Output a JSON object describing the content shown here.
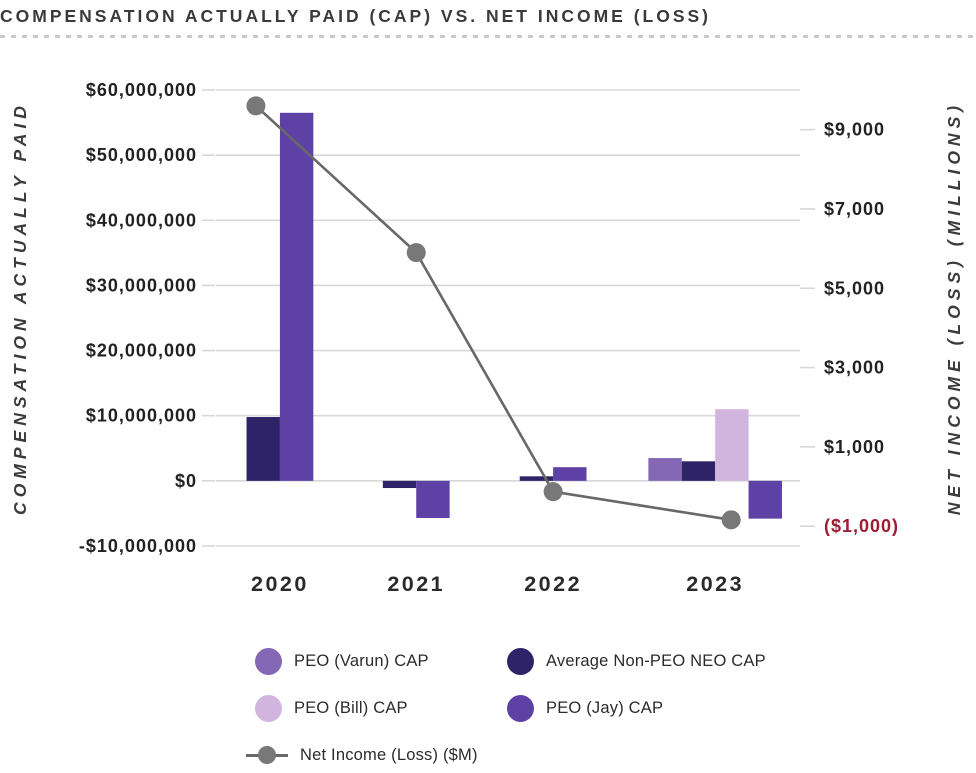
{
  "header": {
    "title": "COMPENSATION ACTUALLY PAID (CAP) VS. NET INCOME (LOSS)"
  },
  "colors": {
    "varun": "#8468b5",
    "avg_neo": "#2e2367",
    "bill": "#d2b5df",
    "jay": "#5e41a5",
    "line": "#686868",
    "marker": "#787878",
    "grid": "#d8d8d8",
    "title_text": "#3a3a3c",
    "tick_text": "#232021",
    "negative_tick": "#9e1b32",
    "legend_text": "#2b2b2b",
    "separator": "#c9c9c9"
  },
  "chart_data": {
    "type": "bar",
    "subtype": "combo-bar-line-dual-axis",
    "title": "COMPENSATION ACTUALLY PAID (CAP) VS. NET INCOME (LOSS)",
    "categories": [
      "2020",
      "2021",
      "2022",
      "2023"
    ],
    "series": [
      {
        "name": "PEO (Varun) CAP",
        "type": "bar",
        "color_key": "varun",
        "values": [
          null,
          null,
          null,
          3500000
        ]
      },
      {
        "name": "Average Non-PEO NEO CAP",
        "type": "bar",
        "color_key": "avg_neo",
        "values": [
          9800000,
          -1100000,
          700000,
          3000000
        ]
      },
      {
        "name": "PEO (Bill) CAP",
        "type": "bar",
        "color_key": "bill",
        "values": [
          null,
          null,
          null,
          11000000
        ]
      },
      {
        "name": "PEO (Jay) CAP",
        "type": "bar",
        "color_key": "jay",
        "values": [
          56500000,
          -5700000,
          2100000,
          -5800000
        ]
      },
      {
        "name": "Net Income (Loss) ($M)",
        "type": "line",
        "axis": "right",
        "color_key": "line",
        "values": [
          9600,
          5900,
          -130,
          -840
        ]
      }
    ],
    "left_axis": {
      "title": "COMPENSATION ACTUALLY PAID",
      "min": -10000000,
      "max": 60000000,
      "grid": true,
      "ticks": [
        {
          "label": "$60,000,000",
          "value": 60000000
        },
        {
          "label": "$50,000,000",
          "value": 50000000
        },
        {
          "label": "$40,000,000",
          "value": 40000000
        },
        {
          "label": "$30,000,000",
          "value": 30000000
        },
        {
          "label": "$20,000,000",
          "value": 20000000
        },
        {
          "label": "$10,000,000",
          "value": 10000000
        },
        {
          "label": "$0",
          "value": 0
        },
        {
          "label": "-$10,000,000",
          "value": -10000000
        }
      ]
    },
    "right_axis": {
      "title": "NET INCOME (LOSS) (MILLIONS)",
      "min": -1500,
      "max": 10000,
      "grid": false,
      "ticks": [
        {
          "label": "$9,000",
          "value": 9000
        },
        {
          "label": "$7,000",
          "value": 7000
        },
        {
          "label": "$5,000",
          "value": 5000
        },
        {
          "label": "$3,000",
          "value": 3000
        },
        {
          "label": "$1,000",
          "value": 1000
        },
        {
          "label": "($1,000)",
          "value": -1000,
          "negative": true
        }
      ]
    },
    "legend_position": "bottom"
  },
  "legend": {
    "items": [
      {
        "label": "PEO (Varun) CAP",
        "color_key": "varun",
        "type": "circle"
      },
      {
        "label": "Average Non-PEO NEO CAP",
        "color_key": "avg_neo",
        "type": "circle"
      },
      {
        "label": "PEO (Bill) CAP",
        "color_key": "bill",
        "type": "circle"
      },
      {
        "label": "PEO (Jay) CAP",
        "color_key": "jay",
        "type": "circle"
      },
      {
        "label": "Net Income (Loss) ($M)",
        "color_key": "line",
        "type": "line"
      }
    ]
  }
}
